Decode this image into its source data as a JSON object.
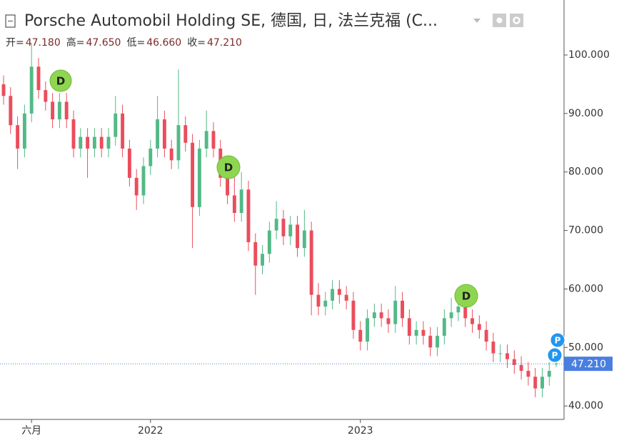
{
  "chart_data": {
    "type": "candlestick",
    "title": "Porsche Automobil Holding SE, 德国, 日, 法兰克福 (C...",
    "ohlc_legend": {
      "labels": [
        "开=",
        "高=",
        "低=",
        "收="
      ],
      "values": [
        47.18,
        47.65,
        46.66,
        47.21
      ],
      "value_labels": [
        "47.180",
        "47.650",
        "46.660",
        "47.210"
      ]
    },
    "last_price": {
      "value": 47.21,
      "label": "47.210"
    },
    "annotations": [
      {
        "text": "D"
      },
      {
        "text": "D"
      },
      {
        "text": "D"
      },
      {
        "text": "P"
      },
      {
        "text": "P"
      }
    ],
    "categories": [
      null,
      null,
      null,
      null,
      "六月",
      null,
      null,
      null,
      null,
      null,
      null,
      null,
      null,
      null,
      null,
      null,
      null,
      null,
      null,
      null,
      null,
      "2022",
      null,
      null,
      null,
      null,
      null,
      null,
      null,
      null,
      null,
      null,
      null,
      null,
      null,
      null,
      null,
      null,
      null,
      null,
      null,
      null,
      null,
      null,
      null,
      null,
      null,
      null,
      null,
      null,
      null,
      "2023",
      null,
      null,
      null,
      null,
      null,
      null,
      null,
      null,
      null,
      null,
      null,
      null,
      null,
      null,
      null,
      null,
      null,
      null,
      null,
      null,
      null,
      null,
      null,
      null,
      null,
      null,
      null,
      null
    ],
    "open": [
      95,
      93,
      88,
      84,
      90,
      98,
      94,
      92,
      89,
      92,
      89,
      84,
      86,
      84,
      86,
      84,
      86,
      90,
      84,
      79,
      76,
      81,
      84,
      89,
      84,
      82,
      88,
      85,
      74,
      84,
      87,
      84,
      79,
      76,
      73,
      77,
      68,
      64,
      66,
      70,
      72,
      69,
      71,
      67,
      70,
      59,
      57,
      58,
      60,
      59,
      58,
      53,
      51,
      55,
      56,
      55,
      54,
      58,
      55,
      52,
      53,
      52,
      50,
      52,
      55,
      56,
      57,
      55,
      54,
      53,
      51,
      49,
      49,
      48,
      47,
      46,
      45,
      43,
      45,
      47.18
    ],
    "high": [
      96.5,
      94.5,
      89.5,
      91.5,
      102,
      99.5,
      95.5,
      93.5,
      93.5,
      93.5,
      90.5,
      87.5,
      87.5,
      87.5,
      87.5,
      87.5,
      93,
      91.5,
      85.5,
      80.5,
      82.5,
      85.5,
      93,
      90.5,
      85.5,
      97.5,
      89.5,
      86.5,
      85.5,
      90.5,
      88.5,
      85.5,
      80.5,
      82,
      80,
      78.5,
      69.5,
      67.5,
      71.5,
      75,
      73.5,
      72.5,
      72.5,
      73.5,
      71.5,
      61,
      59.5,
      61.5,
      61.5,
      60.5,
      59.5,
      54.5,
      56.5,
      57.5,
      57.5,
      56.5,
      60.5,
      59.5,
      56.5,
      54.5,
      54.5,
      53.5,
      53.5,
      56.5,
      58.5,
      58.5,
      58.5,
      56.5,
      55.5,
      54.5,
      52.5,
      50.5,
      50.5,
      49.5,
      48.5,
      47.5,
      46.5,
      46.5,
      47.5,
      47.65
    ],
    "low": [
      91.5,
      86.5,
      80.5,
      82.5,
      88.5,
      92.5,
      90.5,
      87.5,
      87.5,
      87.5,
      82.5,
      82.5,
      79,
      82.5,
      82.5,
      82.5,
      84.5,
      82.5,
      77.5,
      73.5,
      74.5,
      79.5,
      82.5,
      82.5,
      80.5,
      80.5,
      83.5,
      67,
      72.5,
      82.5,
      82.5,
      77.5,
      74.5,
      71.5,
      71.5,
      66.5,
      59,
      62.5,
      64.5,
      68.5,
      67.5,
      67.5,
      65.5,
      65.5,
      55.5,
      55.5,
      55.5,
      56.5,
      57.5,
      56.5,
      51.5,
      49.5,
      49.5,
      53.5,
      53.5,
      52.5,
      52.5,
      53.5,
      50.5,
      50.5,
      50.5,
      48.5,
      48.5,
      50.5,
      53.5,
      54.5,
      53.5,
      52.5,
      51.5,
      49.5,
      47.5,
      47.5,
      46.5,
      45.5,
      44.5,
      43.5,
      41.5,
      41.5,
      43.5,
      46.66
    ],
    "close": [
      93,
      88,
      84,
      90,
      98,
      94,
      92,
      89,
      92,
      89,
      84,
      86,
      84,
      86,
      84,
      86,
      90,
      84,
      79,
      76,
      81,
      84,
      89,
      84,
      82,
      88,
      85,
      74,
      84,
      87,
      84,
      79,
      76,
      73,
      77,
      68,
      64,
      66,
      70,
      72,
      69,
      71,
      67,
      70,
      59,
      57,
      58,
      60,
      59,
      58,
      53,
      51,
      55,
      56,
      55,
      54,
      58,
      55,
      52,
      53,
      52,
      50,
      52,
      55,
      56,
      57,
      55,
      54,
      53,
      51,
      49,
      49,
      48,
      47,
      46,
      45,
      43,
      45,
      46,
      47.21
    ],
    "up_color": "#53b987",
    "down_color": "#eb4d5c",
    "ylim": [
      37.7,
      109.4
    ],
    "yticks": [
      {
        "value": 40,
        "label": "40.000"
      },
      {
        "value": 50,
        "label": "50.000"
      },
      {
        "value": 60,
        "label": "60.000"
      },
      {
        "value": 70,
        "label": "70.000"
      },
      {
        "value": 80,
        "label": "80.000"
      },
      {
        "value": 90,
        "label": "90.000"
      },
      {
        "value": 100,
        "label": "100.000"
      }
    ]
  }
}
